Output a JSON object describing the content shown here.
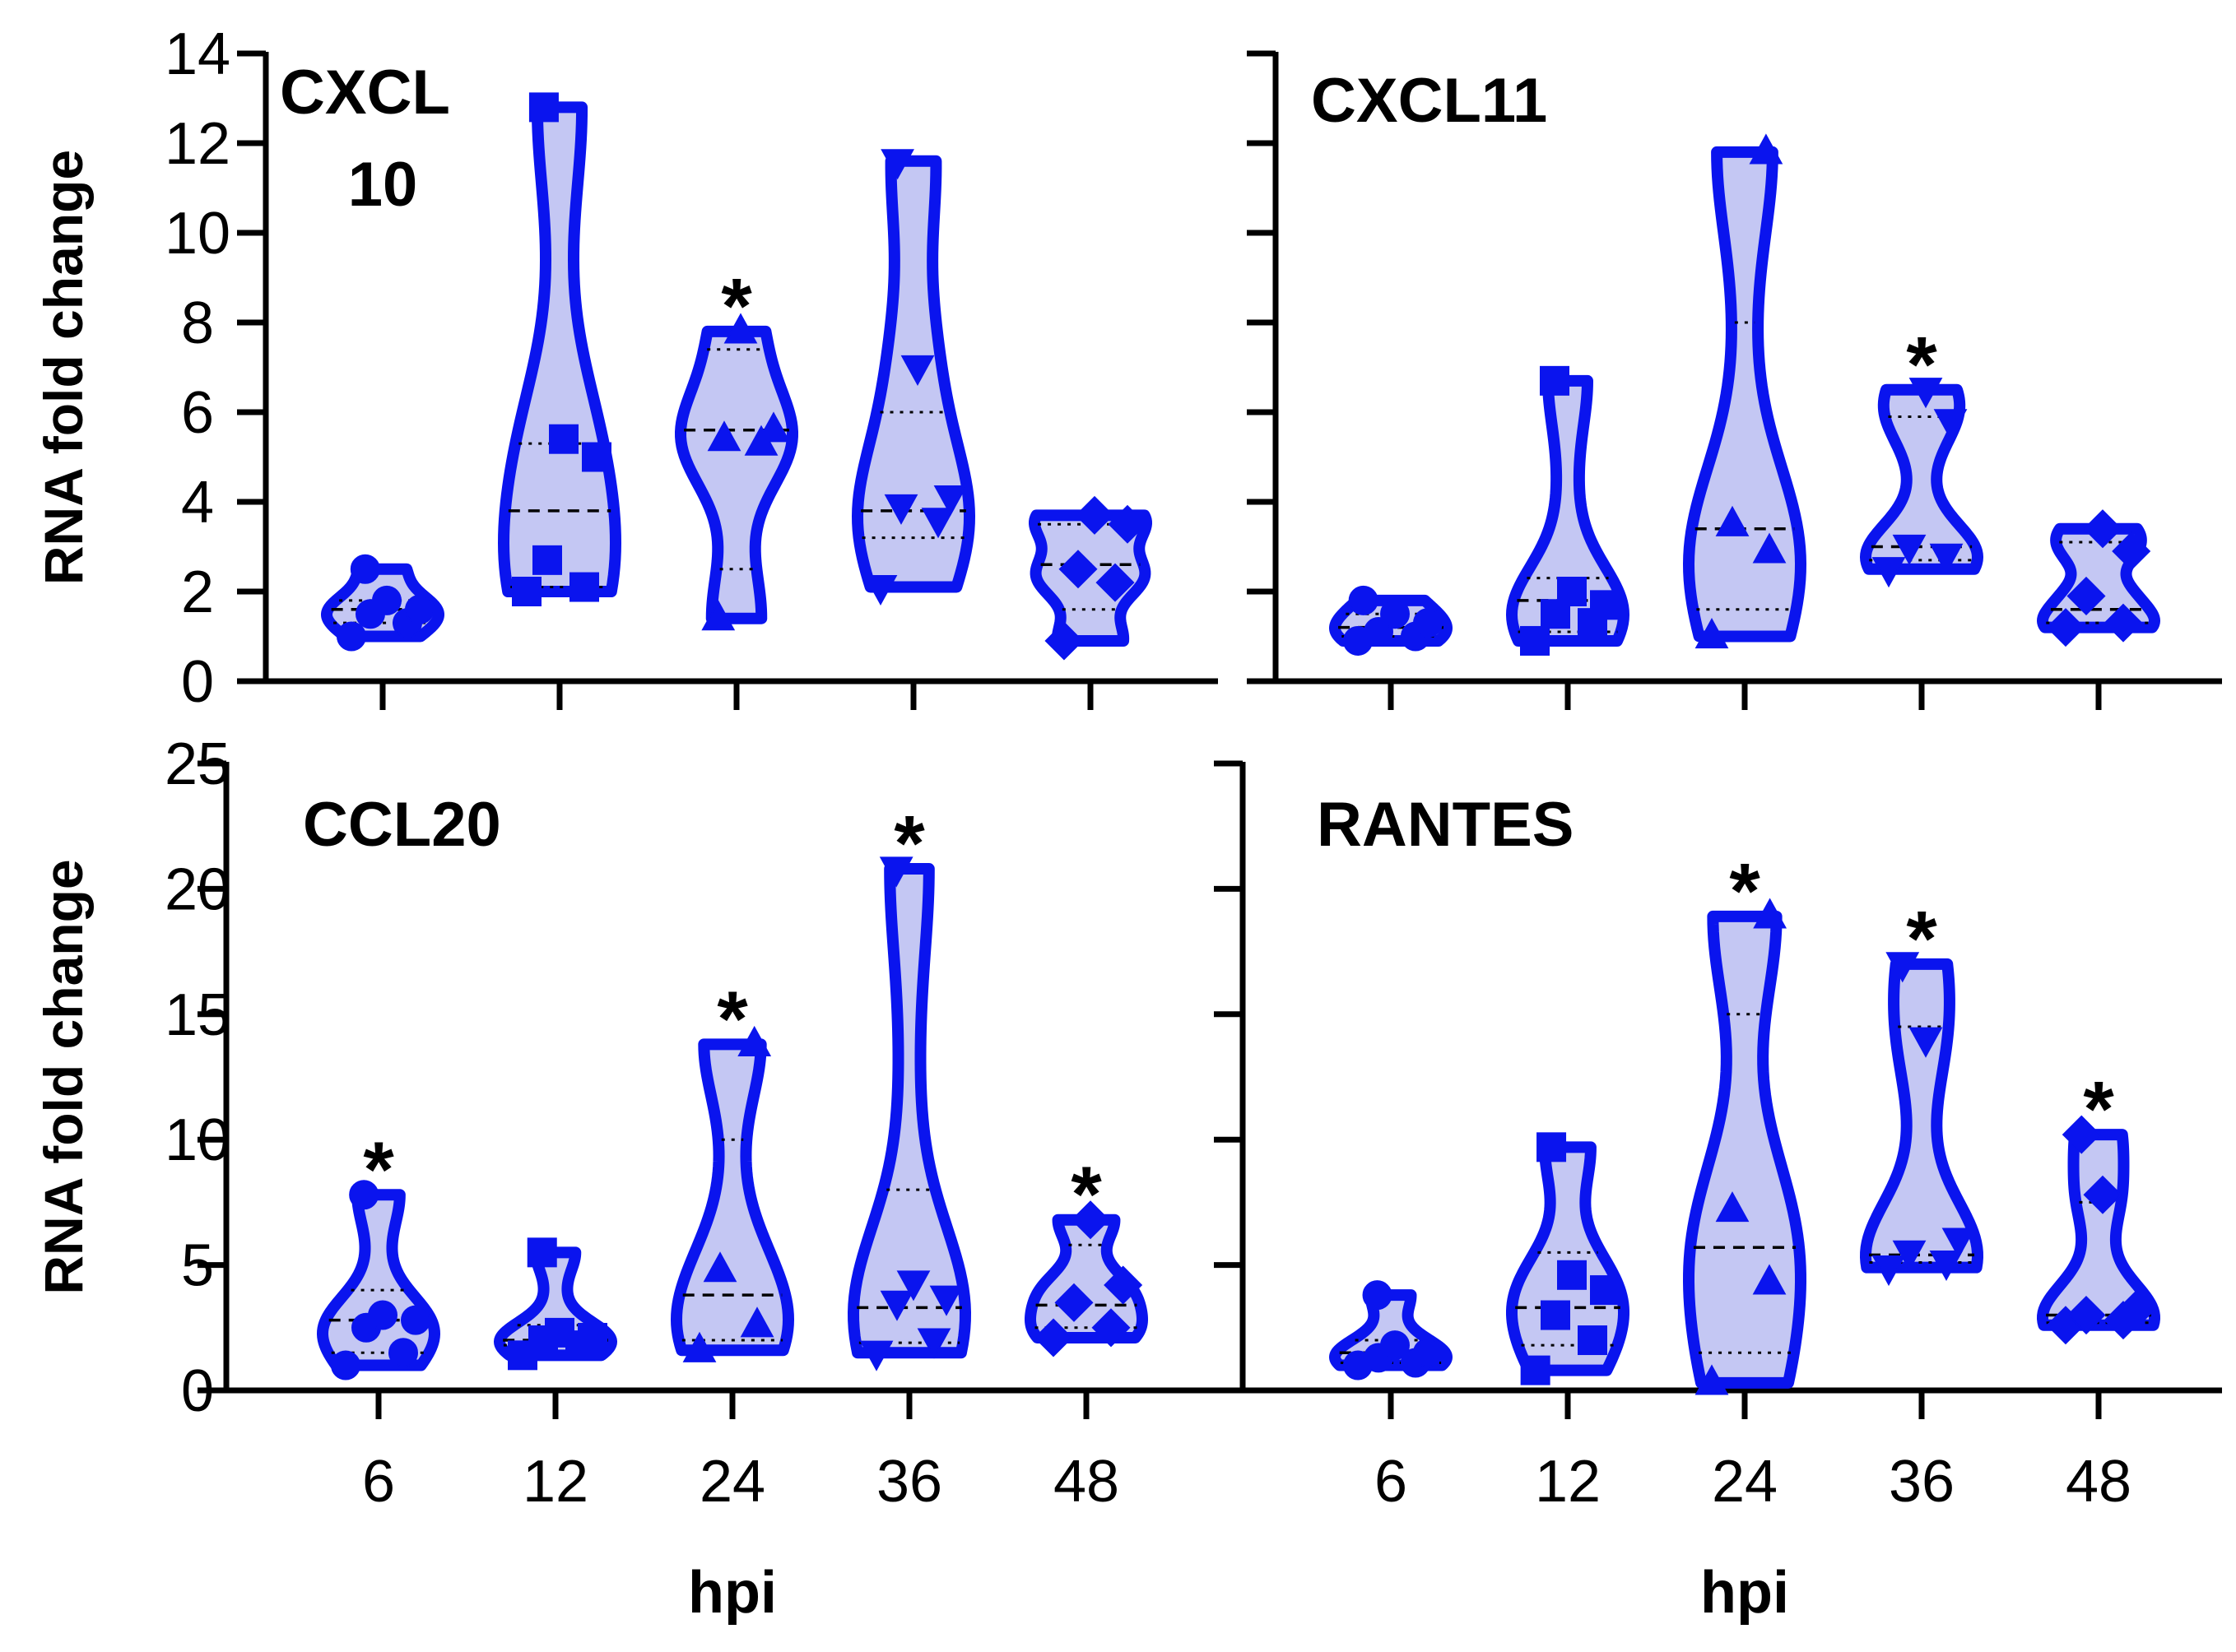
{
  "chart_data": [
    {
      "type": "violin",
      "title": "CXCL 10",
      "title_lines": [
        "CXCL",
        "10"
      ],
      "xlabel": "",
      "ylabel": "RNA fold change",
      "categories": [
        "6",
        "12",
        "24",
        "36",
        "48"
      ],
      "ylim": [
        0,
        14
      ],
      "yticks": [
        0,
        2,
        4,
        6,
        8,
        10,
        12,
        14
      ],
      "color": "#0a14ee",
      "fill": "#c4c7f3",
      "series": [
        {
          "name": "6",
          "marker": "circle",
          "values": [
            1.0,
            1.3,
            1.5,
            1.6,
            1.8,
            2.5
          ],
          "median": 1.6,
          "q1": 1.3,
          "q3": 1.8,
          "significant": false
        },
        {
          "name": "12",
          "marker": "square",
          "values": [
            2.0,
            2.1,
            2.7,
            5.0,
            5.4,
            12.8
          ],
          "median": 3.8,
          "q1": 2.1,
          "q3": 5.3,
          "significant": false
        },
        {
          "name": "24",
          "marker": "triangle-up",
          "values": [
            1.4,
            5.3,
            5.4,
            5.6,
            7.8
          ],
          "median": 5.6,
          "q1": 2.5,
          "q3": 7.4,
          "significant": true
        },
        {
          "name": "36",
          "marker": "triangle-down",
          "values": [
            2.1,
            3.6,
            3.9,
            4.1,
            7.0,
            11.6
          ],
          "median": 3.8,
          "q1": 3.2,
          "q3": 6.0,
          "significant": false
        },
        {
          "name": "48",
          "marker": "diamond",
          "values": [
            0.9,
            2.2,
            2.5,
            3.5,
            3.7
          ],
          "median": 2.6,
          "q1": 1.6,
          "q3": 3.5,
          "significant": false
        }
      ]
    },
    {
      "type": "violin",
      "title": "CXCL11",
      "xlabel": "",
      "ylabel": "",
      "categories": [
        "6",
        "12",
        "24",
        "36",
        "48"
      ],
      "ylim": [
        0,
        14
      ],
      "yticks": [
        0,
        2,
        4,
        6,
        8,
        10,
        12,
        14
      ],
      "color": "#0a14ee",
      "fill": "#c4c7f3",
      "series": [
        {
          "name": "6",
          "marker": "circle",
          "values": [
            0.9,
            1.0,
            1.1,
            1.3,
            1.5,
            1.8
          ],
          "median": 1.2,
          "q1": 1.0,
          "q3": 1.5,
          "significant": false
        },
        {
          "name": "12",
          "marker": "square",
          "values": [
            0.9,
            1.3,
            1.5,
            1.7,
            2.0,
            6.7
          ],
          "median": 1.8,
          "q1": 1.1,
          "q3": 2.3,
          "significant": false
        },
        {
          "name": "24",
          "marker": "triangle-up",
          "values": [
            1.0,
            2.9,
            3.5,
            11.8
          ],
          "median": 3.4,
          "q1": 1.6,
          "q3": 8.0,
          "significant": false
        },
        {
          "name": "36",
          "marker": "triangle-down",
          "values": [
            2.5,
            2.8,
            3.0,
            5.8,
            6.5
          ],
          "median": 3.0,
          "q1": 2.7,
          "q3": 5.9,
          "significant": true
        },
        {
          "name": "48",
          "marker": "diamond",
          "values": [
            1.2,
            1.3,
            1.9,
            2.9,
            3.4
          ],
          "median": 1.6,
          "q1": 1.3,
          "q3": 3.1,
          "significant": false
        }
      ]
    },
    {
      "type": "violin",
      "title": "CCL20",
      "xlabel": "hpi",
      "ylabel": "RNA fold change",
      "categories": [
        "6",
        "12",
        "24",
        "36",
        "48"
      ],
      "ylim": [
        0,
        25
      ],
      "yticks": [
        0,
        5,
        10,
        15,
        20,
        25
      ],
      "color": "#0a14ee",
      "fill": "#c4c7f3",
      "series": [
        {
          "name": "6",
          "marker": "circle",
          "values": [
            1.0,
            1.5,
            2.5,
            2.8,
            3.0,
            7.8
          ],
          "median": 2.8,
          "q1": 1.5,
          "q3": 4.0,
          "significant": true
        },
        {
          "name": "12",
          "marker": "square",
          "values": [
            1.4,
            1.8,
            2.0,
            2.1,
            2.3,
            5.5
          ],
          "median": 2.0,
          "q1": 1.8,
          "q3": 2.6,
          "significant": false
        },
        {
          "name": "24",
          "marker": "triangle-up",
          "values": [
            1.6,
            2.6,
            4.8,
            13.8
          ],
          "median": 3.8,
          "q1": 2.0,
          "q3": 10.0,
          "significant": true
        },
        {
          "name": "36",
          "marker": "triangle-down",
          "values": [
            1.5,
            2.0,
            3.5,
            3.7,
            4.3,
            20.8
          ],
          "median": 3.3,
          "q1": 1.9,
          "q3": 8.0,
          "significant": true
        },
        {
          "name": "48",
          "marker": "diamond",
          "values": [
            2.1,
            2.5,
            3.5,
            4.2,
            6.8
          ],
          "median": 3.4,
          "q1": 2.5,
          "q3": 5.8,
          "significant": true
        }
      ]
    },
    {
      "type": "violin",
      "title": "RANTES",
      "xlabel": "hpi",
      "ylabel": "",
      "categories": [
        "6",
        "12",
        "24",
        "36",
        "48"
      ],
      "ylim": [
        0,
        25
      ],
      "yticks": [
        0,
        5,
        10,
        15,
        20,
        25
      ],
      "color": "#0a14ee",
      "fill": "#c4c7f3",
      "series": [
        {
          "name": "6",
          "marker": "circle",
          "values": [
            1.0,
            1.1,
            1.3,
            1.5,
            1.8,
            3.8
          ],
          "median": 1.5,
          "q1": 1.1,
          "q3": 2.0,
          "significant": false
        },
        {
          "name": "12",
          "marker": "square",
          "values": [
            0.8,
            2.0,
            3.0,
            4.0,
            4.6,
            9.7
          ],
          "median": 3.3,
          "q1": 1.8,
          "q3": 5.5,
          "significant": false
        },
        {
          "name": "24",
          "marker": "triangle-up",
          "values": [
            0.3,
            4.3,
            7.2,
            18.9
          ],
          "median": 5.7,
          "q1": 1.5,
          "q3": 15.0,
          "significant": true
        },
        {
          "name": "36",
          "marker": "triangle-down",
          "values": [
            4.9,
            5.1,
            5.5,
            6.0,
            14.0,
            17.0
          ],
          "median": 5.4,
          "q1": 5.1,
          "q3": 14.5,
          "significant": true
        },
        {
          "name": "48",
          "marker": "diamond",
          "values": [
            2.6,
            2.8,
            3.0,
            3.2,
            7.8,
            10.2
          ],
          "median": 3.0,
          "q1": 2.7,
          "q3": 7.5,
          "significant": true
        }
      ]
    }
  ]
}
